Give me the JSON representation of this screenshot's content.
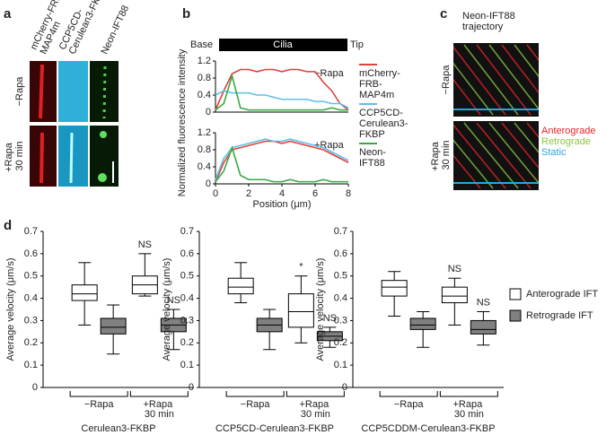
{
  "figure": {
    "panel_labels": [
      "a",
      "b",
      "c",
      "d"
    ],
    "panel_a": {
      "channels": [
        "mCherry-FRB-MAP4m",
        "CCP5CD-Cerulean3-FKBP",
        "Neon-IFT88"
      ],
      "conditions": [
        "−Rapa",
        "+Rapa 30 min"
      ]
    },
    "panel_b": {
      "header": [
        "Base",
        "Cilia",
        "Tip"
      ],
      "ylabel": "Normalized fluorescence intensity",
      "xlabel": "Position (μm)"
    },
    "panel_c": {
      "title": "Neon-IFT88 trajectory",
      "conditions": [
        "−Rapa",
        "+Rapa 30 min"
      ],
      "legend": [
        {
          "name": "Anterograde",
          "color": "#e8232a"
        },
        {
          "name": "Retrograde",
          "color": "#8dc63f"
        },
        {
          "name": "Static",
          "color": "#2aa7df"
        }
      ]
    }
  },
  "chart_data": [
    {
      "type": "line",
      "annotation": "−Rapa",
      "x": [
        0,
        0.5,
        1,
        1.5,
        2,
        2.5,
        3,
        3.5,
        4,
        4.5,
        5,
        5.5,
        6,
        6.5,
        7,
        7.5,
        8
      ],
      "xlim": [
        0,
        8
      ],
      "ylim": [
        0,
        1.2
      ],
      "yticks": [
        0,
        0.4,
        0.8,
        1.2
      ],
      "series": [
        {
          "name": "mCherry-FRB-MAP4m",
          "color": "#e0403a",
          "values": [
            0.05,
            0.5,
            0.9,
            1.0,
            1.0,
            0.95,
            1.0,
            1.0,
            0.95,
            1.0,
            1.0,
            0.95,
            0.95,
            0.7,
            0.5,
            0.2,
            0.05
          ]
        },
        {
          "name": "CCP5CD-Cerulean3-FKBP",
          "color": "#5bc0e8",
          "values": [
            0.4,
            0.5,
            0.45,
            0.45,
            0.45,
            0.4,
            0.4,
            0.35,
            0.3,
            0.3,
            0.3,
            0.3,
            0.25,
            0.25,
            0.2,
            0.2,
            0.1
          ]
        },
        {
          "name": "Neon-IFT88",
          "color": "#3aa845",
          "values": [
            0.05,
            0.2,
            0.85,
            0.1,
            0.05,
            0.05,
            0.05,
            0.05,
            0.05,
            0.05,
            0.05,
            0.05,
            0.05,
            0.05,
            0.1,
            0.05,
            0.05
          ]
        }
      ]
    },
    {
      "type": "line",
      "annotation": "+Rapa",
      "x": [
        0,
        0.5,
        1,
        1.5,
        2,
        2.5,
        3,
        3.5,
        4,
        4.5,
        5,
        5.5,
        6,
        6.5,
        7,
        7.5,
        8
      ],
      "xlim": [
        0,
        8
      ],
      "ylim": [
        0,
        1.2
      ],
      "yticks": [
        0,
        0.4,
        0.8,
        1.2
      ],
      "xticks": [
        0,
        2,
        4,
        6,
        8
      ],
      "series": [
        {
          "color": "#e0403a",
          "values": [
            0.05,
            0.5,
            0.8,
            0.85,
            0.9,
            0.95,
            1.0,
            1.0,
            0.95,
            1.0,
            0.95,
            0.9,
            0.85,
            0.8,
            0.7,
            0.6,
            0.5
          ]
        },
        {
          "color": "#5bc0e8",
          "values": [
            0.1,
            0.6,
            0.85,
            0.9,
            0.95,
            1.0,
            1.05,
            1.0,
            1.0,
            1.05,
            1.0,
            0.95,
            0.9,
            0.85,
            0.75,
            0.65,
            0.55
          ]
        },
        {
          "color": "#3aa845",
          "values": [
            0.05,
            0.3,
            0.85,
            0.2,
            0.1,
            0.1,
            0.1,
            0.05,
            0.05,
            0.1,
            0.05,
            0.05,
            0.05,
            0.1,
            0.05,
            0.05,
            0.05
          ]
        }
      ]
    },
    {
      "type": "box",
      "title": "Cerulean3-FKBP",
      "ylabel": "Average velocity (μm/s)",
      "categories": [
        "−Rapa",
        "+Rapa 30 min"
      ],
      "ylim": [
        0,
        0.7
      ],
      "yticks": [
        0,
        0.1,
        0.2,
        0.3,
        0.4,
        0.5,
        0.6,
        0.7
      ],
      "series": [
        {
          "color": "#ffffff",
          "values": [
            [
              0.28,
              0.39,
              0.42,
              0.46,
              0.56
            ],
            [
              0.41,
              0.42,
              0.46,
              0.5,
              0.6
            ]
          ],
          "annotations": [
            null,
            "NS"
          ]
        },
        {
          "color": "#808080",
          "values": [
            [
              0.15,
              0.24,
              0.27,
              0.31,
              0.37
            ],
            [
              0.17,
              0.25,
              0.28,
              0.31,
              0.35
            ]
          ],
          "annotations": [
            null,
            "NS"
          ]
        }
      ]
    },
    {
      "type": "box",
      "title": "CCP5CD-Cerulean3-FKBP",
      "ylabel": "Average velocity (μm/s)",
      "categories": [
        "−Rapa",
        "+Rapa 30 min"
      ],
      "ylim": [
        0,
        0.7
      ],
      "yticks": [
        0,
        0.1,
        0.2,
        0.3,
        0.4,
        0.5,
        0.6,
        0.7
      ],
      "series": [
        {
          "color": "#ffffff",
          "values": [
            [
              0.38,
              0.42,
              0.45,
              0.49,
              0.56
            ],
            [
              0.2,
              0.27,
              0.34,
              0.42,
              0.5
            ]
          ],
          "annotations": [
            null,
            "*"
          ]
        },
        {
          "color": "#808080",
          "values": [
            [
              0.17,
              0.25,
              0.28,
              0.31,
              0.35
            ],
            [
              0.18,
              0.21,
              0.23,
              0.25,
              0.27
            ]
          ],
          "annotations": [
            null,
            "NS"
          ]
        }
      ]
    },
    {
      "type": "box",
      "title": "CCP5CDDM-Cerulean3-FKBP",
      "ylabel": "Average velocity (μm/s)",
      "categories": [
        "−Rapa",
        "+Rapa 30 min"
      ],
      "ylim": [
        0,
        0.7
      ],
      "yticks": [
        0,
        0.1,
        0.2,
        0.3,
        0.4,
        0.5,
        0.6,
        0.7
      ],
      "series": [
        {
          "name": "Anterograde IFT",
          "color": "#ffffff",
          "values": [
            [
              0.32,
              0.41,
              0.45,
              0.48,
              0.52
            ],
            [
              0.28,
              0.38,
              0.41,
              0.45,
              0.49
            ]
          ],
          "annotations": [
            null,
            "NS"
          ]
        },
        {
          "name": "Retrograde IFT",
          "color": "#808080",
          "values": [
            [
              0.18,
              0.26,
              0.28,
              0.31,
              0.34
            ],
            [
              0.19,
              0.24,
              0.26,
              0.3,
              0.34
            ]
          ],
          "annotations": [
            null,
            "NS"
          ]
        }
      ]
    }
  ]
}
